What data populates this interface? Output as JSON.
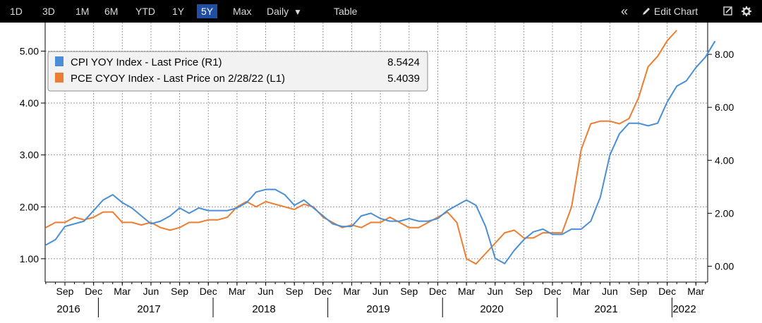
{
  "toolbar": {
    "ranges": [
      "1D",
      "3D",
      "1M",
      "6M",
      "YTD",
      "1Y",
      "5Y",
      "Max"
    ],
    "active_range": "5Y",
    "periodicity": "Daily",
    "dropdown_glyph": "▼",
    "table_label": "Table",
    "collapse_glyph": "«",
    "edit_chart_label": "Edit Chart",
    "icons": [
      "collapse-icon",
      "pencil-icon",
      "edit-icon",
      "gear-icon"
    ]
  },
  "colors": {
    "cpi": "#4a8fd6",
    "pce": "#ed7d31",
    "toolbar_bg": "#000000",
    "active_bg": "#1f4ea3",
    "grid": "#9a9a9a"
  },
  "legend": {
    "items": [
      {
        "label": "CPI YOY Index - Last Price (R1)",
        "value": "8.5424",
        "color": "#4a8fd6"
      },
      {
        "label": "PCE CYOY Index - Last Price on 2/28/22 (L1)",
        "value": "5.4039",
        "color": "#ed7d31"
      }
    ]
  },
  "chart_data": {
    "type": "line",
    "x_start": "2016-07",
    "left_axis": {
      "ticks": [
        "1.00",
        "2.00",
        "3.00",
        "4.00",
        "5.00"
      ],
      "range": [
        0.55,
        5.55
      ]
    },
    "right_axis": {
      "ticks": [
        "0.00",
        "2.00",
        "4.00",
        "6.00",
        "8.00"
      ],
      "range": [
        -0.6,
        9.2
      ]
    },
    "month_labels": [
      "Sep",
      "Dec",
      "Mar",
      "Jun",
      "Sep",
      "Dec",
      "Mar",
      "Jun",
      "Sep",
      "Dec",
      "Mar",
      "Jun",
      "Sep",
      "Dec",
      "Mar",
      "Jun",
      "Sep",
      "Dec",
      "Mar",
      "Jun",
      "Sep",
      "Dec",
      "Mar"
    ],
    "year_labels": [
      "2016",
      "2017",
      "2018",
      "2019",
      "2020",
      "2021",
      "2022"
    ],
    "grid": true,
    "legend_position": "top-left",
    "series": [
      {
        "name": "CPI YOY Index - Last Price (R1)",
        "axis": "right",
        "start": "2016-07",
        "values": [
          0.8,
          1.0,
          1.5,
          1.6,
          1.7,
          2.1,
          2.5,
          2.7,
          2.4,
          2.2,
          1.9,
          1.6,
          1.7,
          1.9,
          2.2,
          2.0,
          2.2,
          2.1,
          2.1,
          2.1,
          2.2,
          2.4,
          2.8,
          2.9,
          2.9,
          2.7,
          2.3,
          2.5,
          2.2,
          1.9,
          1.6,
          1.5,
          1.5,
          1.9,
          2.0,
          1.8,
          1.7,
          1.7,
          1.8,
          1.7,
          1.7,
          1.8,
          2.1,
          2.3,
          2.5,
          2.3,
          1.5,
          0.3,
          0.1,
          0.6,
          1.0,
          1.3,
          1.4,
          1.2,
          1.2,
          1.4,
          1.4,
          1.7,
          2.6,
          4.2,
          5.0,
          5.4,
          5.4,
          5.3,
          5.4,
          6.2,
          6.8,
          7.0,
          7.5,
          7.9,
          8.5
        ]
      },
      {
        "name": "PCE CYOY Index - Last Price on 2/28/22 (L1)",
        "axis": "left",
        "start": "2016-07",
        "values": [
          1.6,
          1.7,
          1.7,
          1.8,
          1.75,
          1.8,
          1.9,
          1.9,
          1.7,
          1.7,
          1.65,
          1.7,
          1.6,
          1.55,
          1.6,
          1.7,
          1.7,
          1.75,
          1.75,
          1.8,
          2.0,
          2.1,
          2.0,
          2.1,
          2.05,
          2.0,
          1.95,
          2.05,
          2.0,
          1.8,
          1.7,
          1.6,
          1.65,
          1.6,
          1.7,
          1.7,
          1.8,
          1.7,
          1.6,
          1.6,
          1.7,
          1.8,
          1.9,
          1.7,
          1.0,
          0.9,
          1.1,
          1.3,
          1.5,
          1.55,
          1.4,
          1.4,
          1.5,
          1.5,
          1.5,
          2.0,
          3.1,
          3.6,
          3.65,
          3.65,
          3.6,
          3.7,
          4.1,
          4.7,
          4.9,
          5.2,
          5.4
        ]
      }
    ]
  }
}
